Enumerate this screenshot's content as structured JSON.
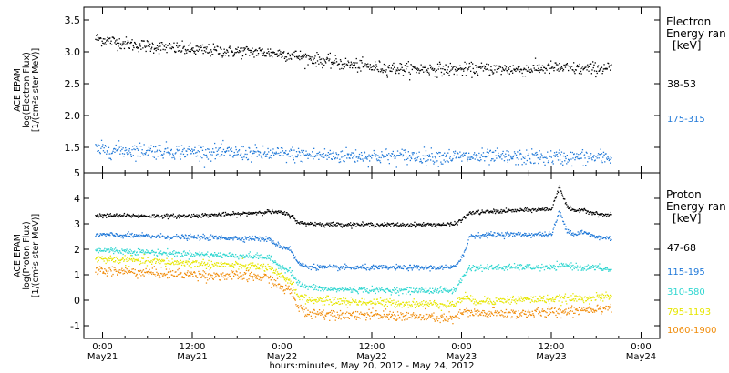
{
  "xaxis": {
    "label": "hours:minutes, May 20, 2012 - May 24, 2012",
    "ticks": [
      {
        "t": 0,
        "time": "0:00",
        "date": "May21"
      },
      {
        "t": 12,
        "time": "12:00",
        "date": "May21"
      },
      {
        "t": 24,
        "time": "0:00",
        "date": "May22"
      },
      {
        "t": 36,
        "time": "12:00",
        "date": "May22"
      },
      {
        "t": 48,
        "time": "0:00",
        "date": "May23"
      },
      {
        "t": 60,
        "time": "12:00",
        "date": "May23"
      },
      {
        "t": 72,
        "time": "0:00",
        "date": "May24"
      }
    ]
  },
  "chart_data": [
    {
      "type": "scatter",
      "panel": "electron",
      "ylabel_lines": [
        "ACE EPAM",
        "log(Electron Flux)",
        "[1/(cm²s ster MeV)]"
      ],
      "ylim": [
        1.1,
        3.7
      ],
      "yticks": [
        1.5,
        2.0,
        2.5,
        3.0,
        3.5
      ],
      "ytick_labels": [
        "1.5",
        "2.0",
        "2.5",
        "3.0",
        "3.5"
      ],
      "xlim_hours_from_May21_0000": [
        -2.5,
        74.5
      ],
      "data_range_hours": [
        -1.0,
        68.0
      ],
      "legend_title": [
        "Electron",
        "Energy ran",
        "[keV]"
      ],
      "series": [
        {
          "name": "38-53",
          "color": "#000000",
          "x": [
            -1,
            0,
            4,
            8,
            12,
            16,
            20,
            24,
            28,
            32,
            36,
            40,
            44,
            48,
            52,
            56,
            60,
            64,
            68
          ],
          "y": [
            3.22,
            3.2,
            3.12,
            3.08,
            3.04,
            3.02,
            3.01,
            2.98,
            2.9,
            2.82,
            2.77,
            2.74,
            2.74,
            2.73,
            2.74,
            2.73,
            2.76,
            2.74,
            2.76
          ],
          "noise": 0.05
        },
        {
          "name": "175-315",
          "color": "#1f78d8",
          "x": [
            -1,
            0,
            6,
            12,
            18,
            24,
            30,
            36,
            42,
            48,
            54,
            60,
            66,
            68
          ],
          "y": [
            1.48,
            1.47,
            1.46,
            1.44,
            1.42,
            1.4,
            1.38,
            1.37,
            1.37,
            1.36,
            1.35,
            1.35,
            1.35,
            1.35
          ],
          "noise": 0.06
        }
      ]
    },
    {
      "type": "scatter",
      "panel": "proton",
      "ylabel_lines": [
        "ACE EPAM",
        "log(Proton Flux)",
        "[1/(cm²s ster MeV)]"
      ],
      "ylim": [
        -1.5,
        5.0
      ],
      "yticks": [
        -1,
        0,
        1,
        2,
        3,
        4,
        5
      ],
      "ytick_labels": [
        "-1",
        "0",
        "1",
        "2",
        "3",
        "4",
        "5"
      ],
      "xlim_hours_from_May21_0000": [
        -2.5,
        74.5
      ],
      "data_range_hours": [
        -1.0,
        68.0
      ],
      "legend_title": [
        "Proton",
        "Energy ran",
        "[keV]"
      ],
      "series": [
        {
          "name": "47-68",
          "color": "#000000",
          "x": [
            -1,
            10,
            18,
            22,
            24,
            25.5,
            26,
            30,
            40,
            47,
            48.5,
            49,
            52,
            56,
            60,
            61,
            62,
            63,
            64,
            66,
            68
          ],
          "y": [
            3.35,
            3.32,
            3.4,
            3.5,
            3.45,
            3.3,
            3.05,
            3.0,
            2.98,
            3.0,
            3.3,
            3.45,
            3.5,
            3.55,
            3.6,
            4.5,
            3.7,
            3.5,
            3.6,
            3.4,
            3.35
          ],
          "noise": 0.04
        },
        {
          "name": "115-195",
          "color": "#1f78d8",
          "x": [
            -1,
            10,
            20,
            22,
            24,
            25,
            26,
            27,
            30,
            40,
            47,
            48.5,
            49,
            52,
            56,
            60,
            61,
            62,
            63,
            64,
            66,
            68
          ],
          "y": [
            2.6,
            2.5,
            2.45,
            2.42,
            2.1,
            2.05,
            1.5,
            1.35,
            1.3,
            1.3,
            1.3,
            2.0,
            2.55,
            2.6,
            2.6,
            2.6,
            3.5,
            2.8,
            2.6,
            2.7,
            2.5,
            2.45
          ],
          "noise": 0.05
        },
        {
          "name": "310-580",
          "color": "#2fd6d0",
          "x": [
            -1,
            10,
            20,
            22,
            24,
            25,
            26,
            27,
            30,
            40,
            47,
            48.5,
            49,
            52,
            56,
            60,
            62,
            64,
            66,
            68
          ],
          "y": [
            2.0,
            1.85,
            1.75,
            1.7,
            1.3,
            1.2,
            0.7,
            0.55,
            0.45,
            0.4,
            0.4,
            1.1,
            1.3,
            1.3,
            1.32,
            1.3,
            1.4,
            1.3,
            1.3,
            1.2
          ],
          "noise": 0.06
        },
        {
          "name": "795-1193",
          "color": "#e6e600",
          "x": [
            -1,
            10,
            20,
            22,
            24,
            25,
            26,
            27,
            30,
            40,
            47,
            48.5,
            49,
            52,
            56,
            60,
            64,
            68
          ],
          "y": [
            1.65,
            1.5,
            1.35,
            1.3,
            0.9,
            0.8,
            0.25,
            0.05,
            0.0,
            -0.1,
            -0.15,
            0.2,
            0.0,
            0.0,
            0.05,
            0.05,
            0.1,
            0.15
          ],
          "noise": 0.08
        },
        {
          "name": "1060-1900",
          "color": "#f08c0a",
          "x": [
            -1,
            10,
            20,
            22,
            24,
            25,
            26,
            27,
            30,
            40,
            47,
            48.5,
            49,
            52,
            56,
            60,
            64,
            68
          ],
          "y": [
            1.2,
            1.05,
            0.95,
            0.9,
            0.5,
            0.4,
            -0.2,
            -0.45,
            -0.5,
            -0.6,
            -0.7,
            -0.4,
            -0.5,
            -0.5,
            -0.5,
            -0.45,
            -0.35,
            -0.25
          ],
          "noise": 0.1
        }
      ]
    }
  ]
}
